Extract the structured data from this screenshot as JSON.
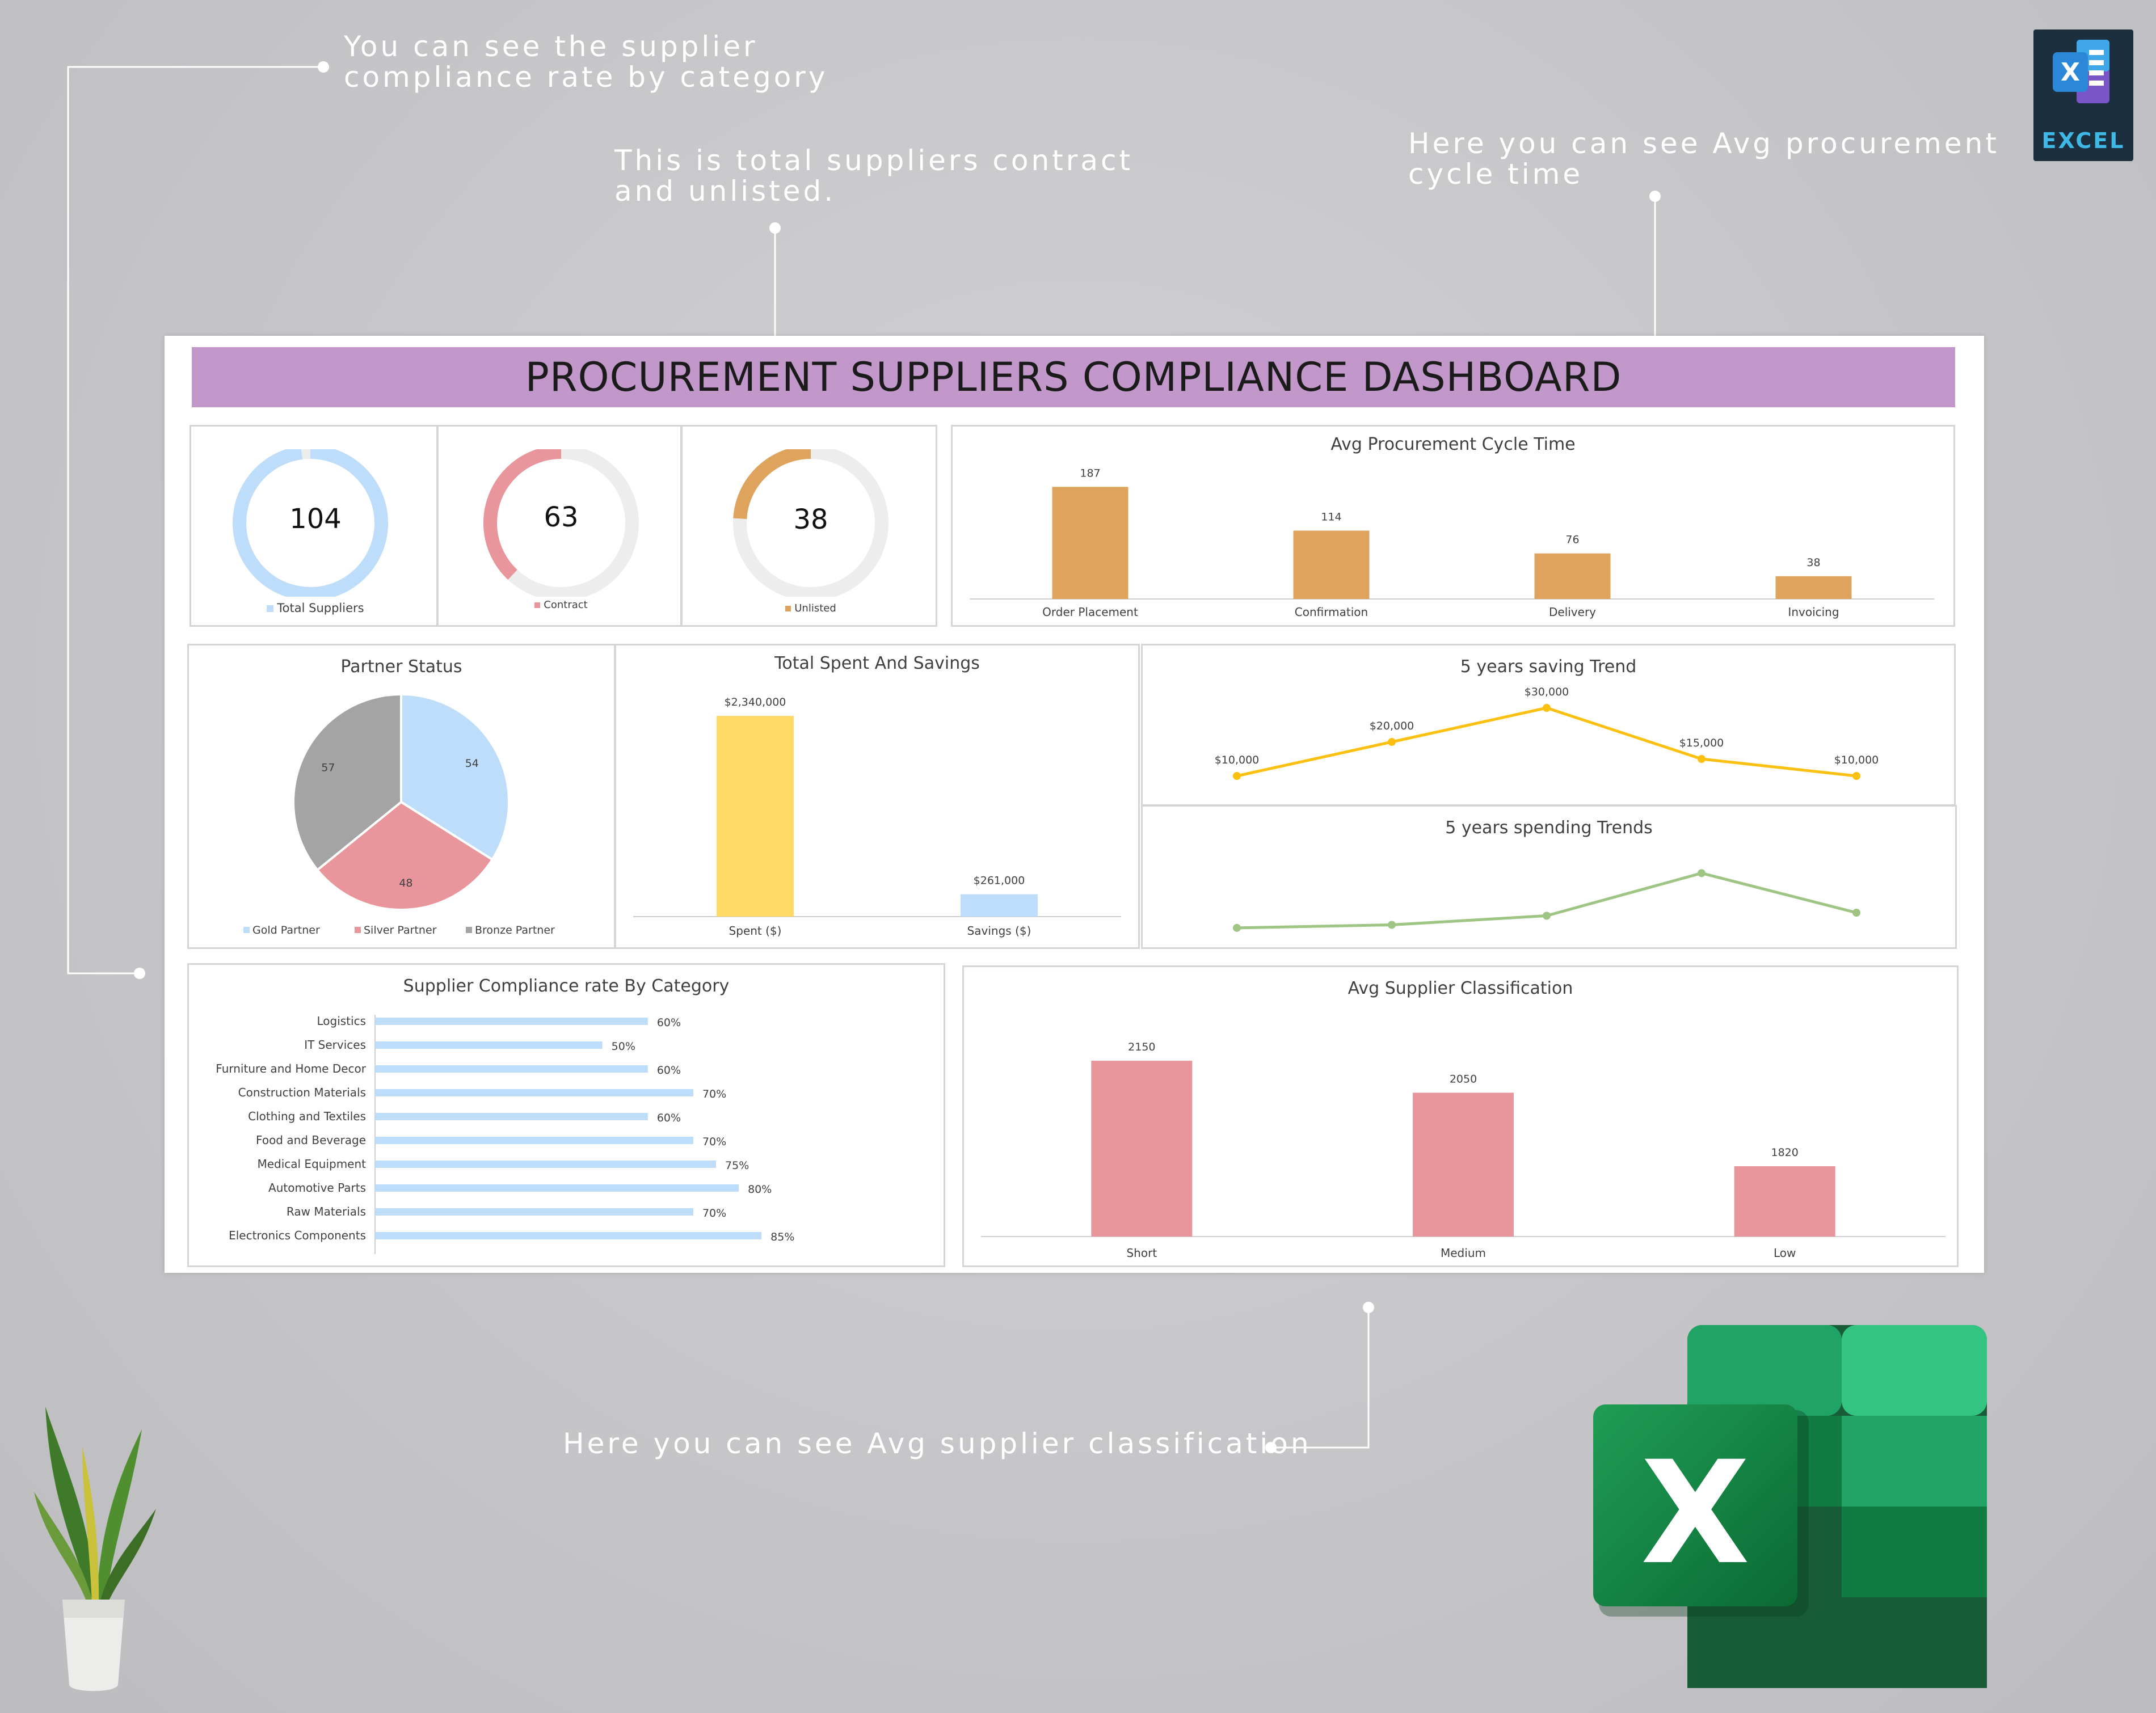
{
  "callouts": {
    "compliance_line1": "You can see the supplier",
    "compliance_line2": "compliance rate by category",
    "suppliers_line1": "This is total suppliers contract",
    "suppliers_line2": "and unlisted.",
    "cycle_line1": "Here you can see Avg procurement",
    "cycle_line2": "cycle time",
    "classification": "Here you can see Avg supplier classification"
  },
  "badge": {
    "label": "EXCEL",
    "icon": "excel-icon"
  },
  "dashboard": {
    "title": "PROCUREMENT SUPPLIERS COMPLIANCE DASHBOARD",
    "kpis": [
      {
        "value": "104",
        "label": "Total Suppliers",
        "color": "#bdddfa",
        "fraction": 0.98
      },
      {
        "value": "63",
        "label": "Contract",
        "color": "#e8959b",
        "fraction": 0.38
      },
      {
        "value": "38",
        "label": "Unlisted",
        "color": "#dea35c",
        "fraction": 0.24
      }
    ]
  },
  "colors": {
    "blue": "#bdddfa",
    "pink": "#e8959b",
    "orange": "#dea35c",
    "gray": "#a4a4a4",
    "yellow": "#fed966",
    "line_yellow": "#fcc010",
    "line_green": "#9ec584",
    "title_purple": "#c198c9"
  },
  "chart_data": [
    {
      "type": "bar",
      "title": "Avg Procurement Cycle Time",
      "categories": [
        "Order Placement",
        "Confirmation",
        "Delivery",
        "Invoicing"
      ],
      "values": [
        187,
        114,
        76,
        38
      ],
      "labels": [
        "187",
        "114",
        "76",
        "38"
      ],
      "ylim": [
        0,
        210
      ],
      "color": "#dea35c"
    },
    {
      "type": "pie",
      "title": "Partner Status",
      "categories": [
        "Gold Partner",
        "Silver Partner",
        "Bronze Partner"
      ],
      "values": [
        54,
        48,
        57
      ],
      "colors": [
        "#bdddfa",
        "#e8959b",
        "#a4a4a4"
      ],
      "legend": "bottom"
    },
    {
      "type": "bar",
      "title": "Total Spent And Savings",
      "categories": [
        "Spent ($)",
        "Savings ($)"
      ],
      "values": [
        2340000,
        261000
      ],
      "labels": [
        "$2,340,000",
        "$261,000"
      ],
      "ylim": [
        0,
        2500000
      ],
      "colors": [
        "#fed966",
        "#bdddfa"
      ]
    },
    {
      "type": "line",
      "title": "5 years saving Trend",
      "values": [
        10000,
        20000,
        30000,
        15000,
        10000
      ],
      "labels": [
        "$10,000",
        "$20,000",
        "$30,000",
        "$15,000",
        "$10,000"
      ],
      "ylim": [
        0,
        40000
      ],
      "color": "#fcc010"
    },
    {
      "type": "line",
      "title": "5 years spending Trends",
      "values": [
        1.0,
        1.5,
        3.0,
        10.0,
        3.5
      ],
      "color": "#9ec584"
    },
    {
      "type": "bar",
      "orientation": "horizontal",
      "title": "Supplier Compliance rate By Category",
      "categories": [
        "Logistics",
        "IT Services",
        "Furniture and Home Decor",
        "Construction Materials",
        "Clothing and Textiles",
        "Food and Beverage",
        "Medical Equipment",
        "Automotive Parts",
        "Raw Materials",
        "Electronics Components"
      ],
      "values": [
        60,
        50,
        60,
        70,
        60,
        70,
        75,
        80,
        70,
        85
      ],
      "labels": [
        "60%",
        "50%",
        "60%",
        "70%",
        "60%",
        "70%",
        "75%",
        "80%",
        "70%",
        "85%"
      ],
      "xlim": [
        0,
        100
      ],
      "color": "#bdddfa"
    },
    {
      "type": "bar",
      "title": "Avg Supplier Classification",
      "categories": [
        "Short",
        "Medium",
        "Low"
      ],
      "values": [
        2150,
        2050,
        1820
      ],
      "labels": [
        "2150",
        "2050",
        "1820"
      ],
      "ylim": [
        1600,
        2230
      ],
      "color": "#e8959b"
    }
  ]
}
